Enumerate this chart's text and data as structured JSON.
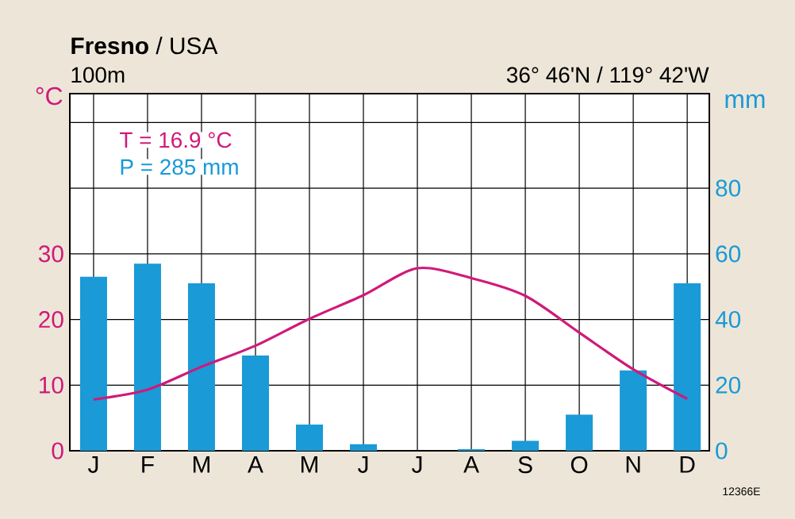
{
  "chart_data": {
    "type": "bar",
    "title": "**Fresno** / USA",
    "ylabel": "°C",
    "y2label": "mm",
    "categories": [
      "J",
      "F",
      "M",
      "A",
      "M",
      "J",
      "J",
      "A",
      "S",
      "O",
      "N",
      "D"
    ],
    "series": [
      {
        "axis": "y2",
        "color": "#1a9ad6",
        "values": [
          53,
          57,
          51,
          29,
          8,
          2,
          0,
          0.5,
          3,
          11,
          24.5,
          51
        ]
      },
      {
        "type": "line",
        "color": "#d0197a",
        "values": [
          7.8,
          9.3,
          12.8,
          16,
          20.1,
          23.7,
          27.8,
          26.3,
          23.6,
          18,
          12.4,
          7.9
        ]
      }
    ],
    "ylim": [
      0,
      54.4
    ],
    "yticks": [
      0,
      10,
      20,
      30,
      {
        "value": 40,
        "label": null
      },
      {
        "value": 50,
        "label": null
      }
    ],
    "y2lim": [
      0,
      108.8
    ],
    "y2ticks": [
      0,
      20,
      40,
      60,
      80
    ],
    "grid": true,
    "annotations": [
      "T = 16.9 °C",
      "P = 285 mm",
      "100m",
      "36° 46'N / 119° 42'W",
      "12366E"
    ]
  }
}
